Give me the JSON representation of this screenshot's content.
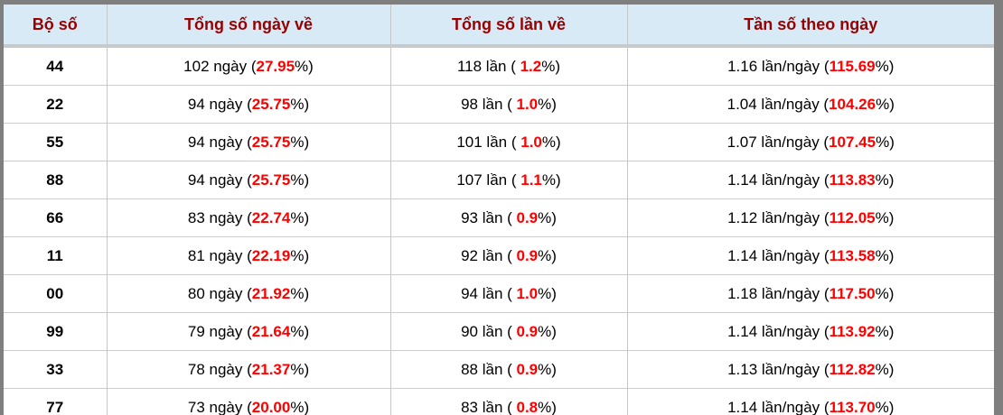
{
  "chart_data": {
    "type": "table",
    "columns": [
      "Bộ số",
      "Tổng số ngày về",
      "Tổng số lần về",
      "Tần số theo ngày"
    ],
    "rows": [
      [
        "44",
        "102 ngày (27.95%)",
        "118 lần ( 1.2%)",
        "1.16 lần/ngày (115.69%)"
      ],
      [
        "22",
        "94 ngày (25.75%)",
        "98 lần ( 1.0%)",
        "1.04 lần/ngày (104.26%)"
      ],
      [
        "55",
        "94 ngày (25.75%)",
        "101 lần ( 1.0%)",
        "1.07 lần/ngày (107.45%)"
      ],
      [
        "88",
        "94 ngày (25.75%)",
        "107 lần ( 1.1%)",
        "1.14 lần/ngày (113.83%)"
      ],
      [
        "66",
        "83 ngày (22.74%)",
        "93 lần ( 0.9%)",
        "1.12 lần/ngày (112.05%)"
      ],
      [
        "11",
        "81 ngày (22.19%)",
        "92 lần ( 0.9%)",
        "1.14 lần/ngày (113.58%)"
      ],
      [
        "00",
        "80 ngày (21.92%)",
        "94 lần ( 1.0%)",
        "1.18 lần/ngày (117.50%)"
      ],
      [
        "99",
        "79 ngày (21.64%)",
        "90 lần ( 0.9%)",
        "1.14 lần/ngày (113.92%)"
      ],
      [
        "33",
        "78 ngày (21.37%)",
        "88 lần ( 0.9%)",
        "1.13 lần/ngày (112.82%)"
      ],
      [
        "77",
        "73 ngày (20.00%)",
        "83 lần ( 0.8%)",
        "1.14 lần/ngày (113.70%)"
      ]
    ],
    "layout_hints": {
      "highlight_rule": "percentage inside parentheses rendered red bold",
      "alignment": "center"
    }
  },
  "colors": {
    "frame": "#7f7f7f",
    "header_background": "#d7eaf6",
    "header_text": "#990000",
    "body_text": "#000000",
    "percent_highlight": "#ff0000",
    "grid_line": "#cccccc",
    "header_divider": "#c9c9c9"
  }
}
